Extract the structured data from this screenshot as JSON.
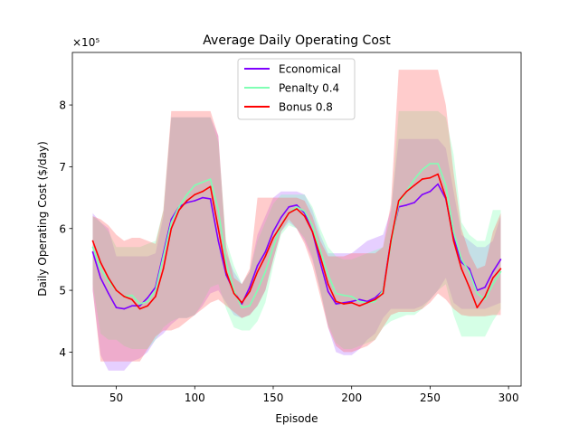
{
  "chart_data": {
    "type": "line",
    "title": "Average Daily Operating Cost",
    "xlabel": "Episode",
    "ylabel": "Daily Operating Cost ($/day)",
    "y_multiplier_label": "×10⁵",
    "xlim": [
      22,
      308
    ],
    "ylim": [
      3.45,
      8.85
    ],
    "xticks": [
      50,
      100,
      150,
      200,
      250,
      300
    ],
    "yticks": [
      4,
      5,
      6,
      7,
      8
    ],
    "grid": false,
    "legend_position": "upper center",
    "series": [
      {
        "name": "Economical",
        "color": "#7f00ff",
        "band_color": "#b46cff",
        "x": [
          35,
          40,
          45,
          50,
          55,
          60,
          65,
          70,
          75,
          80,
          85,
          90,
          95,
          100,
          105,
          110,
          115,
          120,
          125,
          130,
          135,
          140,
          145,
          150,
          155,
          160,
          165,
          170,
          175,
          180,
          185,
          190,
          195,
          200,
          205,
          210,
          215,
          220,
          225,
          230,
          235,
          240,
          245,
          250,
          255,
          260,
          265,
          270,
          275,
          280,
          285,
          290,
          295
        ],
        "y": [
          5.62,
          5.2,
          4.95,
          4.72,
          4.7,
          4.75,
          4.75,
          4.88,
          5.05,
          5.6,
          6.15,
          6.35,
          6.42,
          6.45,
          6.5,
          6.48,
          5.8,
          5.25,
          4.98,
          4.78,
          5.05,
          5.4,
          5.62,
          5.95,
          6.18,
          6.35,
          6.38,
          6.25,
          5.95,
          5.45,
          4.98,
          4.78,
          4.8,
          4.82,
          4.85,
          4.82,
          4.88,
          5.0,
          5.8,
          6.35,
          6.38,
          6.42,
          6.55,
          6.6,
          6.72,
          6.48,
          5.85,
          5.45,
          5.35,
          5.0,
          5.05,
          5.3,
          5.5
        ],
        "upper": [
          6.25,
          6.1,
          6.0,
          5.55,
          5.55,
          5.55,
          5.55,
          5.55,
          5.6,
          6.2,
          7.8,
          7.8,
          7.8,
          7.8,
          7.8,
          7.8,
          7.5,
          5.6,
          5.3,
          5.1,
          5.3,
          5.9,
          6.2,
          6.5,
          6.6,
          6.6,
          6.6,
          6.55,
          6.3,
          5.9,
          5.6,
          5.6,
          5.6,
          5.6,
          5.7,
          5.8,
          5.85,
          5.9,
          6.3,
          7.45,
          7.45,
          7.45,
          7.45,
          7.45,
          7.45,
          7.3,
          6.6,
          5.9,
          5.8,
          5.7,
          5.7,
          5.8,
          6.2
        ],
        "lower": [
          5.0,
          3.95,
          3.7,
          3.7,
          3.7,
          3.85,
          3.9,
          4.0,
          4.2,
          4.3,
          4.45,
          4.55,
          4.55,
          4.6,
          4.75,
          4.95,
          5.0,
          4.8,
          4.6,
          4.55,
          4.6,
          4.75,
          5.0,
          5.5,
          5.95,
          6.1,
          6.0,
          5.8,
          5.5,
          5.0,
          4.4,
          4.0,
          3.95,
          3.95,
          4.05,
          4.2,
          4.3,
          4.55,
          4.7,
          4.7,
          4.7,
          4.7,
          4.75,
          4.85,
          5.0,
          5.2,
          4.8,
          4.7,
          4.7,
          4.7,
          4.7,
          4.75,
          4.8
        ]
      },
      {
        "name": "Penalty 0.4",
        "color": "#80ffb4",
        "band_color": "#80ffb4",
        "x": [
          35,
          40,
          45,
          50,
          55,
          60,
          65,
          70,
          75,
          80,
          85,
          90,
          95,
          100,
          105,
          110,
          115,
          120,
          125,
          130,
          135,
          140,
          145,
          150,
          155,
          160,
          165,
          170,
          175,
          180,
          185,
          190,
          195,
          200,
          205,
          210,
          215,
          220,
          225,
          230,
          235,
          240,
          245,
          250,
          255,
          260,
          265,
          270,
          275,
          280,
          285,
          290,
          295
        ],
        "y": [
          5.7,
          5.35,
          5.15,
          5.0,
          4.9,
          4.92,
          4.78,
          4.82,
          5.0,
          5.55,
          6.1,
          6.35,
          6.55,
          6.7,
          6.75,
          6.8,
          6.3,
          5.45,
          5.0,
          4.72,
          4.75,
          5.0,
          5.3,
          5.7,
          6.05,
          6.25,
          6.35,
          6.28,
          6.05,
          5.65,
          5.25,
          4.95,
          4.92,
          4.9,
          4.82,
          4.8,
          4.82,
          5.0,
          5.75,
          6.4,
          6.6,
          6.8,
          6.95,
          7.05,
          7.05,
          6.7,
          5.95,
          5.5,
          5.3,
          4.95,
          4.85,
          5.1,
          5.3
        ],
        "upper": [
          6.2,
          6.1,
          5.95,
          5.7,
          5.7,
          5.7,
          5.7,
          5.75,
          5.8,
          6.3,
          7.8,
          7.8,
          7.8,
          7.8,
          7.8,
          7.8,
          7.4,
          5.8,
          5.4,
          5.1,
          5.3,
          5.8,
          6.1,
          6.4,
          6.55,
          6.55,
          6.55,
          6.55,
          6.35,
          6.0,
          5.7,
          5.55,
          5.5,
          5.5,
          5.55,
          5.6,
          5.65,
          5.7,
          6.2,
          7.9,
          7.9,
          7.9,
          7.9,
          7.9,
          7.9,
          7.8,
          7.2,
          6.1,
          5.9,
          5.8,
          5.8,
          6.3,
          6.3
        ],
        "lower": [
          5.1,
          4.3,
          4.2,
          4.2,
          4.1,
          4.05,
          4.05,
          4.05,
          4.2,
          4.4,
          4.5,
          4.55,
          4.55,
          4.6,
          4.8,
          5.05,
          5.1,
          4.7,
          4.4,
          4.35,
          4.35,
          4.5,
          4.8,
          5.4,
          5.9,
          6.05,
          6.0,
          5.85,
          5.55,
          5.0,
          4.45,
          4.15,
          4.05,
          4.05,
          4.1,
          4.15,
          4.2,
          4.4,
          4.5,
          4.55,
          4.6,
          4.6,
          4.7,
          4.85,
          5.0,
          5.1,
          4.6,
          4.25,
          4.25,
          4.25,
          4.25,
          4.5,
          4.7
        ]
      },
      {
        "name": "Bonus 0.8",
        "color": "#ff0000",
        "band_color": "#ff6464",
        "x": [
          35,
          40,
          45,
          50,
          55,
          60,
          65,
          70,
          75,
          80,
          85,
          90,
          95,
          100,
          105,
          110,
          115,
          120,
          125,
          130,
          135,
          140,
          145,
          150,
          155,
          160,
          165,
          170,
          175,
          180,
          185,
          190,
          195,
          200,
          205,
          210,
          215,
          220,
          225,
          230,
          235,
          240,
          245,
          250,
          255,
          260,
          265,
          270,
          275,
          280,
          285,
          290,
          295
        ],
        "y": [
          5.8,
          5.45,
          5.2,
          5.0,
          4.9,
          4.85,
          4.7,
          4.75,
          4.9,
          5.35,
          6.0,
          6.3,
          6.45,
          6.55,
          6.6,
          6.68,
          6.0,
          5.3,
          4.95,
          4.8,
          4.98,
          5.3,
          5.55,
          5.85,
          6.05,
          6.25,
          6.32,
          6.2,
          5.95,
          5.55,
          5.1,
          4.82,
          4.78,
          4.8,
          4.75,
          4.8,
          4.85,
          4.95,
          5.8,
          6.45,
          6.6,
          6.7,
          6.8,
          6.82,
          6.88,
          6.5,
          5.8,
          5.35,
          5.05,
          4.72,
          4.9,
          5.2,
          5.35
        ],
        "upper": [
          6.2,
          6.15,
          6.05,
          5.9,
          5.8,
          5.85,
          5.85,
          5.8,
          5.75,
          6.3,
          7.9,
          7.9,
          7.9,
          7.9,
          7.9,
          7.9,
          7.5,
          5.7,
          5.2,
          5.1,
          5.35,
          6.5,
          6.5,
          6.5,
          6.5,
          6.5,
          6.5,
          6.45,
          6.2,
          5.8,
          5.55,
          5.55,
          5.55,
          5.6,
          5.6,
          5.6,
          5.6,
          5.7,
          6.4,
          8.57,
          8.57,
          8.57,
          8.57,
          8.57,
          8.57,
          8.0,
          6.9,
          6.0,
          5.6,
          5.35,
          5.4,
          5.95,
          6.25
        ],
        "lower": [
          5.0,
          3.85,
          3.85,
          3.85,
          3.85,
          3.85,
          3.85,
          4.05,
          4.25,
          4.35,
          4.35,
          4.4,
          4.5,
          4.6,
          4.7,
          4.8,
          4.85,
          4.75,
          4.65,
          4.55,
          4.6,
          4.75,
          5.0,
          5.5,
          5.95,
          6.15,
          6.0,
          5.75,
          5.4,
          4.9,
          4.4,
          4.1,
          4.0,
          4.0,
          4.05,
          4.1,
          4.2,
          4.4,
          4.6,
          4.65,
          4.65,
          4.65,
          4.7,
          4.8,
          4.95,
          4.85,
          4.7,
          4.6,
          4.58,
          4.58,
          4.58,
          4.6,
          4.6
        ]
      }
    ]
  }
}
